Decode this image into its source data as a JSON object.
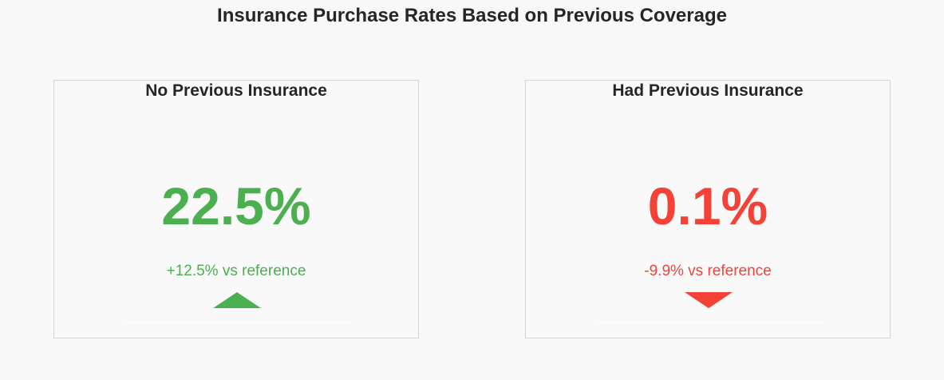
{
  "title": "Insurance Purchase Rates Based on Previous Coverage",
  "colors": {
    "positive": "#4caf50",
    "negative": "#f44336"
  },
  "chart_data": {
    "type": "table",
    "title": "Insurance Purchase Rates Based on Previous Coverage",
    "panels": [
      {
        "label": "No Previous Insurance",
        "value_text": "22.5%",
        "value": 22.5,
        "delta_text": "+12.5% vs reference",
        "delta": 12.5,
        "direction": "up",
        "color": "#4caf50"
      },
      {
        "label": "Had Previous Insurance",
        "value_text": "0.1%",
        "value": 0.1,
        "delta_text": "-9.9% vs reference",
        "delta": -9.9,
        "direction": "down",
        "color": "#f44336"
      }
    ]
  }
}
